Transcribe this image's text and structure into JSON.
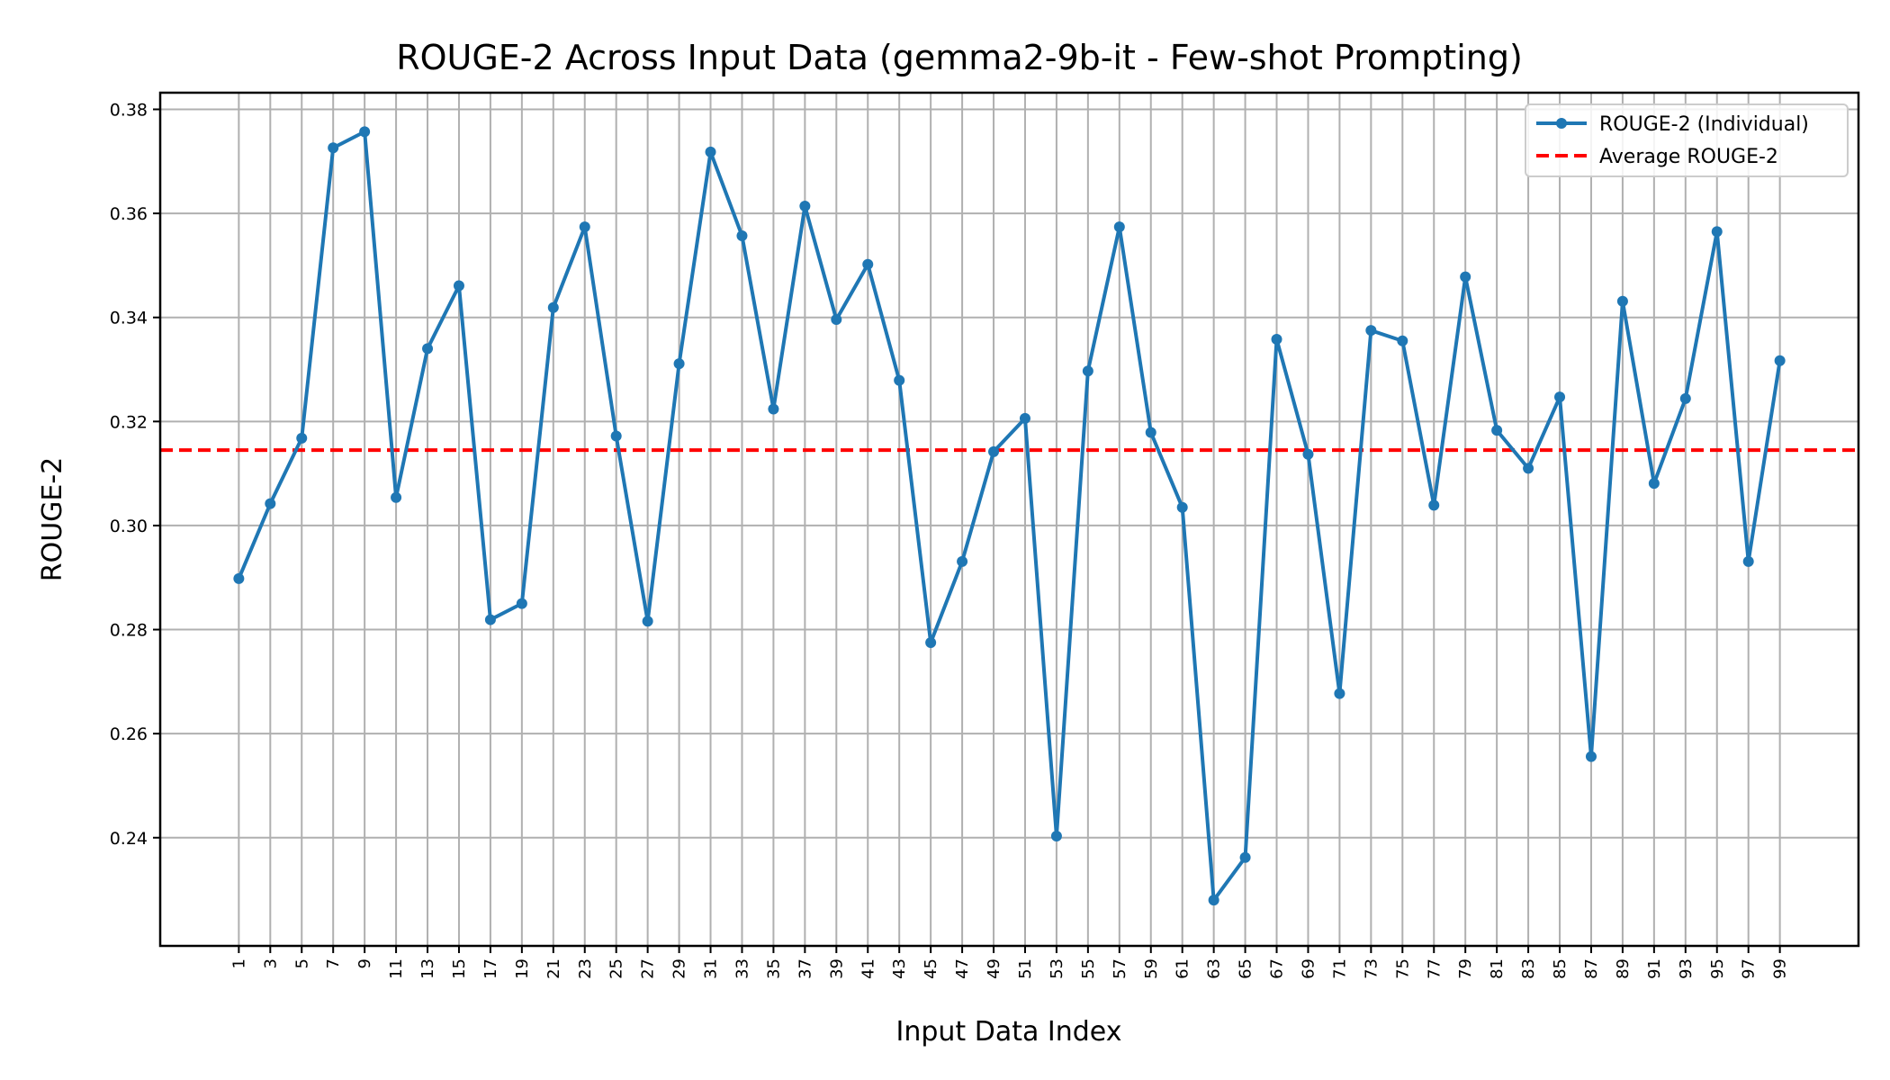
{
  "chart_data": {
    "type": "line",
    "title": "ROUGE-2 Across Input Data (gemma2-9b-it - Few-shot Prompting)",
    "xlabel": "Input Data Index",
    "ylabel": "ROUGE-2",
    "x": [
      1,
      3,
      5,
      7,
      9,
      11,
      13,
      15,
      17,
      19,
      21,
      23,
      25,
      27,
      29,
      31,
      33,
      35,
      37,
      39,
      41,
      43,
      45,
      47,
      49,
      51,
      53,
      55,
      57,
      59,
      61,
      63,
      65,
      67,
      69,
      71,
      73,
      75,
      77,
      79,
      81,
      83,
      85,
      87,
      89,
      91,
      93,
      95,
      97,
      99
    ],
    "xlim": [
      -4,
      104
    ],
    "ylim": [
      0.2192,
      0.3832
    ],
    "yticks": [
      "0.24",
      "0.26",
      "0.28",
      "0.30",
      "0.32",
      "0.34",
      "0.36",
      "0.38"
    ],
    "xticks": [
      "1",
      "3",
      "5",
      "7",
      "9",
      "11",
      "13",
      "15",
      "17",
      "19",
      "21",
      "23",
      "25",
      "27",
      "29",
      "31",
      "33",
      "35",
      "37",
      "39",
      "41",
      "43",
      "45",
      "47",
      "49",
      "51",
      "53",
      "55",
      "57",
      "59",
      "61",
      "63",
      "65",
      "67",
      "69",
      "71",
      "73",
      "75",
      "77",
      "79",
      "81",
      "83",
      "85",
      "87",
      "89",
      "91",
      "93",
      "95",
      "97",
      "99"
    ],
    "series": [
      {
        "name": "ROUGE-2 (Individual)",
        "color": "#1f77b4",
        "values": [
          0.2898,
          0.3042,
          0.3168,
          0.3726,
          0.3757,
          0.3054,
          0.334,
          0.3461,
          0.2819,
          0.285,
          0.3419,
          0.3574,
          0.3172,
          0.2816,
          0.3311,
          0.3718,
          0.3557,
          0.3224,
          0.3614,
          0.3396,
          0.3502,
          0.3279,
          0.2775,
          0.2931,
          0.3142,
          0.3206,
          0.2403,
          0.3297,
          0.3574,
          0.3179,
          0.3035,
          0.228,
          0.2362,
          0.3358,
          0.3137,
          0.2677,
          0.3375,
          0.3355,
          0.3039,
          0.3478,
          0.3183,
          0.311,
          0.3247,
          0.2556,
          0.3431,
          0.3081,
          0.3244,
          0.3565,
          0.2931,
          0.3317
        ]
      }
    ],
    "average": {
      "name": "Average ROUGE-2",
      "value": 0.3145,
      "color": "#ff0000"
    },
    "grid": true,
    "legend": "top-right"
  }
}
